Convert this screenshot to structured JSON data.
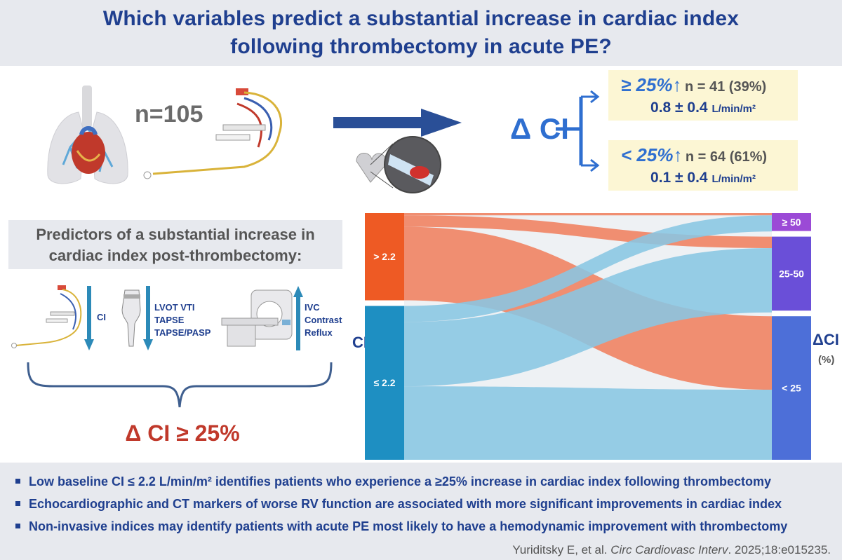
{
  "title": {
    "line1": "Which variables predict a substantial increase in cardiac index",
    "line2": "following thrombectomy in acute PE?"
  },
  "cohort": {
    "n_label": "n=105"
  },
  "outcome": {
    "label": "Δ CI",
    "groups": [
      {
        "threshold": "≥ 25%",
        "arrow": "↑",
        "n_text": "n = 41 (39%)",
        "mean": "0.8 ± 0.4",
        "unit": "L/min/m²"
      },
      {
        "threshold": "< 25%",
        "arrow": "↑",
        "n_text": "n = 64 (61%)",
        "mean": "0.1 ± 0.4",
        "unit": "L/min/m²"
      }
    ]
  },
  "predictors": {
    "title_line1": "Predictors of a substantial increase in",
    "title_line2": "cardiac index post-thrombectomy:",
    "items": [
      {
        "label": "CI",
        "direction": "down"
      },
      {
        "label_lines": [
          "LVOT VTI",
          "TAPSE",
          "TAPSE/PASP"
        ],
        "direction": "down"
      },
      {
        "label_lines": [
          "IVC",
          "Contrast",
          "Reflux"
        ],
        "direction": "up"
      }
    ],
    "result": "Δ CI ≥ 25%"
  },
  "chart_data": {
    "type": "sankey",
    "left_axis_label": "CI",
    "right_axis_label": "ΔCI",
    "right_axis_unit": "(%)",
    "source_nodes": [
      {
        "label": "> 2.2",
        "color": "#ee5a24"
      },
      {
        "label": "≤ 2.2",
        "color": "#1e8fc2"
      }
    ],
    "target_nodes": [
      {
        "label": "≥ 50",
        "color": "#9b4ad6"
      },
      {
        "label": "25-50",
        "color": "#6a4fd8"
      },
      {
        "label": "< 25",
        "color": "#4d6fd8"
      }
    ],
    "flow_colors": {
      "> 2.2": "#f07f5f",
      "≤ 2.2": "#89c6e3"
    },
    "flows": [
      {
        "from": "> 2.2",
        "to": "≥ 50",
        "value": 1
      },
      {
        "from": "> 2.2",
        "to": "25-50",
        "value": 5
      },
      {
        "from": "> 2.2",
        "to": "< 25",
        "value": 32
      },
      {
        "from": "≤ 2.2",
        "to": "≥ 50",
        "value": 7
      },
      {
        "from": "≤ 2.2",
        "to": "25-50",
        "value": 28
      },
      {
        "from": "≤ 2.2",
        "to": "< 25",
        "value": 32
      }
    ]
  },
  "conclusions": [
    "Low baseline CI ≤ 2.2 L/min/m² identifies patients who experience a ≥25% increase in cardiac index following thrombectomy",
    "Echocardiographic and CT markers of worse RV function are associated with more significant improvements in cardiac index",
    "Non-invasive indices may identify patients with acute PE most likely to have a hemodynamic improvement with thrombectomy"
  ],
  "citation": {
    "authors": "Yuriditsky E, et al.",
    "journal": "Circ Cardiovasc Interv",
    "details": ". 2025;18:e015235."
  }
}
